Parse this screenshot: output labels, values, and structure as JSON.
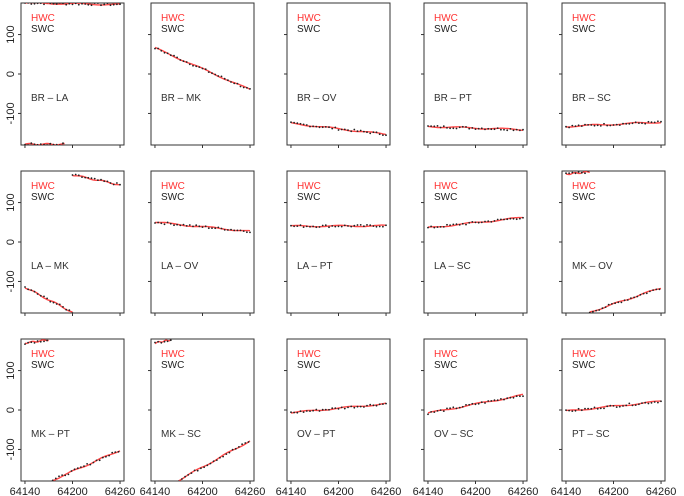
{
  "colors": {
    "hwc": "#ff3333",
    "swc": "#222222",
    "frame": "#333333"
  },
  "chart_data": {
    "type": "scatter",
    "layout": "3x5 grid of panels",
    "legend": [
      "HWC",
      "SWC"
    ],
    "x_ticks": [
      64140,
      64200,
      64260
    ],
    "y_ticks": [
      100,
      0,
      -100
    ],
    "xlim": [
      64135,
      64265
    ],
    "ylim": [
      -180,
      180
    ],
    "panels": [
      {
        "pair": "BR – LA",
        "segments": [
          {
            "x": [
              64140,
              64260
            ],
            "y": [
              180,
              176
            ]
          },
          {
            "x": [
              64140,
              64190
            ],
            "y": [
              -178,
              -178
            ]
          }
        ]
      },
      {
        "pair": "BR – MK",
        "segments": [
          {
            "x": [
              64140,
              64260
            ],
            "y": [
              66,
              -40
            ]
          }
        ]
      },
      {
        "pair": "BR – OV",
        "segments": [
          {
            "x": [
              64140,
              64260
            ],
            "y": [
              -125,
              -153
            ]
          }
        ]
      },
      {
        "pair": "BR – PT",
        "segments": [
          {
            "x": [
              64140,
              64260
            ],
            "y": [
              -133,
              -141
            ]
          }
        ]
      },
      {
        "pair": "BR – SC",
        "segments": [
          {
            "x": [
              64140,
              64260
            ],
            "y": [
              -133,
              -122
            ]
          }
        ]
      },
      {
        "pair": "LA – MK",
        "segments": [
          {
            "x": [
              64200,
              64260
            ],
            "y": [
              170,
              145
            ]
          },
          {
            "x": [
              64140,
              64200
            ],
            "y": [
              -115,
              -178
            ]
          }
        ]
      },
      {
        "pair": "LA – OV",
        "segments": [
          {
            "x": [
              64140,
              64260
            ],
            "y": [
              50,
              27
            ]
          }
        ]
      },
      {
        "pair": "LA – PT",
        "segments": [
          {
            "x": [
              64140,
              64260
            ],
            "y": [
              40,
              41
            ]
          }
        ]
      },
      {
        "pair": "LA – SC",
        "segments": [
          {
            "x": [
              64140,
              64260
            ],
            "y": [
              36,
              62
            ]
          }
        ]
      },
      {
        "pair": "MK – OV",
        "segments": [
          {
            "x": [
              64140,
              64170
            ],
            "y": [
              172,
              178
            ]
          },
          {
            "x": [
              64170,
              64260
            ],
            "y": [
              -178,
              -116
            ]
          }
        ]
      },
      {
        "pair": "MK – PT",
        "segments": [
          {
            "x": [
              64140,
              64170
            ],
            "y": [
              170,
              178
            ]
          },
          {
            "x": [
              64175,
              64260
            ],
            "y": [
              -178,
              -102
            ]
          }
        ]
      },
      {
        "pair": "MK – SC",
        "segments": [
          {
            "x": [
              64140,
              64160
            ],
            "y": [
              170,
              178
            ]
          },
          {
            "x": [
              64170,
              64260
            ],
            "y": [
              -178,
              -78
            ]
          }
        ]
      },
      {
        "pair": "OV – PT",
        "segments": [
          {
            "x": [
              64140,
              64260
            ],
            "y": [
              -7,
              16
            ]
          }
        ]
      },
      {
        "pair": "OV – SC",
        "segments": [
          {
            "x": [
              64140,
              64260
            ],
            "y": [
              -8,
              38
            ]
          }
        ]
      },
      {
        "pair": "PT – SC",
        "segments": [
          {
            "x": [
              64140,
              64260
            ],
            "y": [
              -3,
              22
            ]
          }
        ]
      }
    ]
  }
}
